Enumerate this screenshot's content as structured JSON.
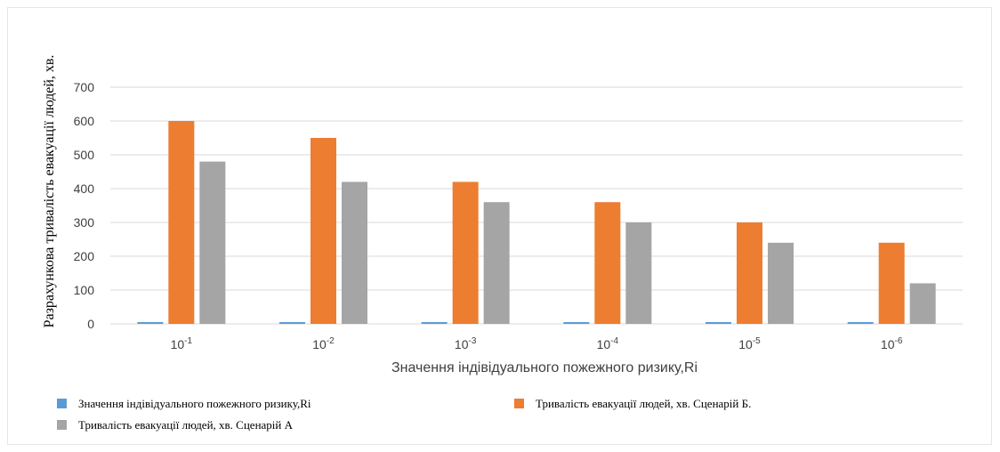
{
  "chart_data": {
    "type": "bar",
    "title": "",
    "xlabel": "Значення індівідуального пожежного ризику,Ri",
    "ylabel": "Разрахункова тривалість евакуації людей, хв.",
    "ylim": [
      0,
      700
    ],
    "yticks": [
      0,
      100,
      200,
      300,
      400,
      500,
      600,
      700
    ],
    "grid": true,
    "legend_position": "bottom",
    "categories": [
      {
        "base": "10",
        "exp": "-1"
      },
      {
        "base": "10",
        "exp": "-2"
      },
      {
        "base": "10",
        "exp": "-3"
      },
      {
        "base": "10",
        "exp": "-4"
      },
      {
        "base": "10",
        "exp": "-5"
      },
      {
        "base": "10",
        "exp": "-6"
      }
    ],
    "series": [
      {
        "name": "Значення індівідуального пожежного ризику,Ri",
        "color": "#5b9bd5",
        "values": [
          0.1,
          0.01,
          0.001,
          0.0001,
          1e-05,
          1e-06
        ]
      },
      {
        "name": "Тривалість евакуації людей, хв. Сценарій Б.",
        "color": "#ed7d31",
        "values": [
          600,
          550,
          420,
          360,
          300,
          240
        ]
      },
      {
        "name": "Тривалість евакуації людей, хв. Сценарій А",
        "color": "#a5a5a5",
        "values": [
          480,
          420,
          360,
          300,
          240,
          120
        ]
      }
    ]
  }
}
